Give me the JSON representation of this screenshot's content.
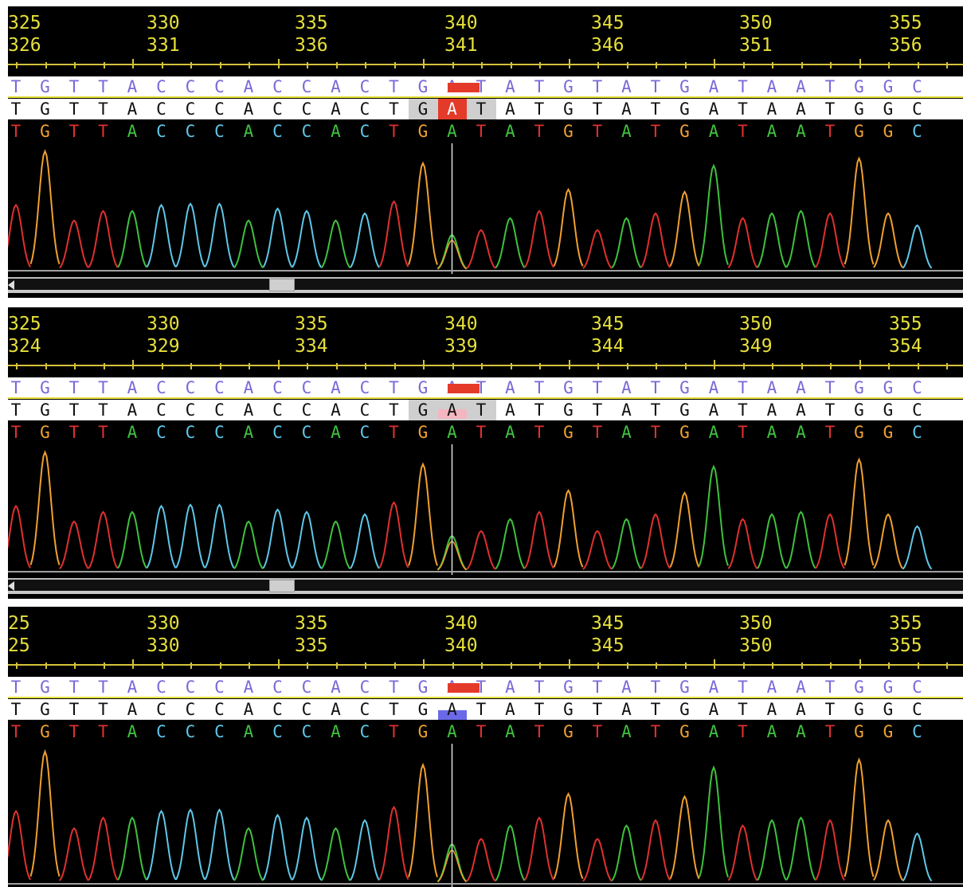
{
  "colors": {
    "A": "#3ec23e",
    "C": "#5fc7e8",
    "G": "#f0a030",
    "T": "#e03030",
    "ref": "#7b68d8",
    "query": "#111111",
    "ruler": "#e6e03a"
  },
  "panels": [
    {
      "ruler_top": [
        "325",
        "330",
        "335",
        "340",
        "345",
        "350",
        "355"
      ],
      "ruler_bottom": [
        "326",
        "331",
        "336",
        "341",
        "346",
        "351",
        "356"
      ],
      "query_highlight": "red",
      "marker_color": "red"
    },
    {
      "ruler_top": [
        "325",
        "330",
        "335",
        "340",
        "345",
        "350",
        "355"
      ],
      "ruler_bottom": [
        "324",
        "329",
        "334",
        "339",
        "344",
        "349",
        "354"
      ],
      "query_highlight": "pink",
      "marker_color": "red"
    },
    {
      "ruler_top": [
        "25",
        "330",
        "335",
        "340",
        "345",
        "350",
        "355"
      ],
      "ruler_bottom": [
        "25",
        "330",
        "335",
        "340",
        "345",
        "350",
        "355"
      ],
      "query_highlight": "blue",
      "marker_color": "red"
    }
  ],
  "sequence": [
    "T",
    "G",
    "T",
    "T",
    "A",
    "C",
    "C",
    "C",
    "A",
    "C",
    "C",
    "A",
    "C",
    "T",
    "G",
    "A",
    "T",
    "A",
    "T",
    "G",
    "T",
    "A",
    "T",
    "G",
    "A",
    "T",
    "A",
    "A",
    "T",
    "G",
    "G",
    "C"
  ],
  "chromatogram": {
    "peaks": [
      {
        "base": "T",
        "height": 0.55
      },
      {
        "base": "G",
        "height": 1.0
      },
      {
        "base": "T",
        "height": 0.42
      },
      {
        "base": "T",
        "height": 0.5
      },
      {
        "base": "A",
        "height": 0.5
      },
      {
        "base": "C",
        "height": 0.55
      },
      {
        "base": "C",
        "height": 0.56
      },
      {
        "base": "C",
        "height": 0.56
      },
      {
        "base": "A",
        "height": 0.42
      },
      {
        "base": "C",
        "height": 0.52
      },
      {
        "base": "C",
        "height": 0.5
      },
      {
        "base": "A",
        "height": 0.42
      },
      {
        "base": "C",
        "height": 0.48
      },
      {
        "base": "T",
        "height": 0.58
      },
      {
        "base": "G",
        "height": 0.9
      },
      {
        "base": "A",
        "height": 0.3
      },
      {
        "base": "T",
        "height": 0.34
      },
      {
        "base": "A",
        "height": 0.44
      },
      {
        "base": "T",
        "height": 0.5
      },
      {
        "base": "G",
        "height": 0.68
      },
      {
        "base": "T",
        "height": 0.34
      },
      {
        "base": "A",
        "height": 0.44
      },
      {
        "base": "T",
        "height": 0.48
      },
      {
        "base": "G",
        "height": 0.66
      },
      {
        "base": "A",
        "height": 0.88
      },
      {
        "base": "T",
        "height": 0.44
      },
      {
        "base": "A",
        "height": 0.48
      },
      {
        "base": "A",
        "height": 0.5
      },
      {
        "base": "T",
        "height": 0.48
      },
      {
        "base": "G",
        "height": 0.94
      },
      {
        "base": "G",
        "height": 0.48
      },
      {
        "base": "C",
        "height": 0.38
      }
    ]
  }
}
